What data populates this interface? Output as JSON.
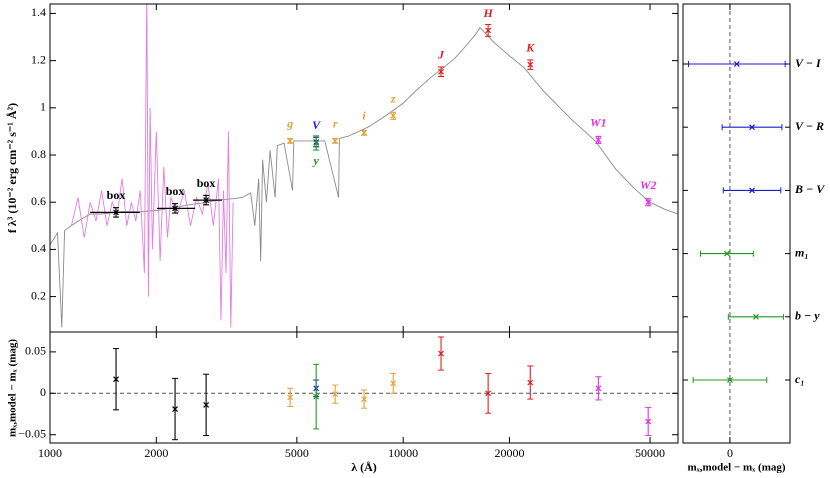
{
  "chart_data": [
    {
      "type": "sed",
      "ylabel": "f λ³ (10⁻² erg cm⁻² s⁻¹ Å²)",
      "xscale": "log",
      "xlim": [
        1000,
        60000
      ],
      "ylim": [
        0.05,
        1.44
      ],
      "yticks": [
        0.2,
        0.4,
        0.6,
        0.8,
        1,
        1.2,
        1.4
      ],
      "series": [
        {
          "color": "#8a8a8a",
          "x": [
            1000,
            1050,
            1080,
            1100,
            1200,
            1300,
            1400,
            1600,
            1800,
            2000,
            2200,
            2500,
            2800,
            3000,
            3300,
            3500,
            3700,
            3800,
            3900,
            3950,
            4000,
            4100,
            4200,
            4340,
            4400,
            4600,
            4861,
            4900,
            5200,
            5500,
            6000,
            6563,
            6600,
            7000,
            8000,
            9000,
            10000,
            11000,
            12000,
            13000,
            14000,
            15000,
            16000,
            16500,
            17000,
            18000,
            20000,
            22000,
            25000,
            30000,
            35000,
            40000,
            45000,
            50000,
            55000,
            60000
          ],
          "values": [
            0.42,
            0.47,
            0.07,
            0.48,
            0.52,
            0.55,
            0.55,
            0.56,
            0.56,
            0.565,
            0.575,
            0.59,
            0.6,
            0.61,
            0.615,
            0.62,
            0.64,
            0.5,
            0.7,
            0.35,
            0.78,
            0.6,
            0.82,
            0.62,
            0.84,
            0.85,
            0.65,
            0.86,
            0.86,
            0.86,
            0.86,
            0.62,
            0.87,
            0.88,
            0.92,
            0.97,
            1.02,
            1.08,
            1.13,
            1.17,
            1.21,
            1.26,
            1.31,
            1.34,
            1.32,
            1.28,
            1.22,
            1.17,
            1.07,
            0.95,
            0.86,
            0.74,
            0.66,
            0.6,
            0.57,
            0.55
          ]
        },
        {
          "color": "#e47de4",
          "x": [
            1150,
            1200,
            1250,
            1300,
            1350,
            1400,
            1450,
            1500,
            1550,
            1600,
            1650,
            1700,
            1750,
            1800,
            1850,
            1880,
            1900,
            1920,
            1950,
            2000,
            2050,
            2100,
            2150,
            2200,
            2300,
            2400,
            2500,
            2600,
            2700,
            2800,
            2900,
            3000,
            3050,
            3100,
            3150,
            3200,
            3250,
            3300
          ],
          "values": [
            0.5,
            0.62,
            0.45,
            0.6,
            0.52,
            0.65,
            0.5,
            0.6,
            0.55,
            0.7,
            0.5,
            0.6,
            0.52,
            0.65,
            0.3,
            1.5,
            0.2,
            1.0,
            0.4,
            0.9,
            0.35,
            0.75,
            0.45,
            0.62,
            0.55,
            0.65,
            0.5,
            0.62,
            0.55,
            0.68,
            0.5,
            0.7,
            0.1,
            0.65,
            0.3,
            0.9,
            0.07,
            0.6
          ]
        }
      ],
      "points": [
        {
          "label": "box",
          "color": "#000000",
          "x": 1538,
          "xrange": [
            1298,
            1798
          ],
          "value": 0.557,
          "error": 0.02
        },
        {
          "label": "box",
          "color": "#000000",
          "x": 2260,
          "xrange": [
            2010,
            2575
          ],
          "value": 0.574,
          "error": 0.02
        },
        {
          "label": "box",
          "color": "#000000",
          "x": 2767,
          "xrange": [
            2540,
            3070
          ],
          "value": 0.609,
          "error": 0.02
        },
        {
          "label": "g",
          "color": "#e3a23a",
          "x": 4786,
          "value": 0.86,
          "error": 0.01
        },
        {
          "label": "V",
          "color": "#1a1ad6",
          "x": 5670,
          "value": 0.855,
          "error": 0.02
        },
        {
          "label": "y",
          "color": "#1f9a1f",
          "x": 5670,
          "value": 0.851,
          "error": 0.03
        },
        {
          "label": "r",
          "color": "#e3a23a",
          "x": 6418,
          "value": 0.86,
          "error": 0.01
        },
        {
          "label": "i",
          "color": "#e3a23a",
          "x": 7750,
          "value": 0.894,
          "error": 0.01
        },
        {
          "label": "z",
          "color": "#e3a23a",
          "x": 9370,
          "value": 0.966,
          "error": 0.015
        },
        {
          "label": "J",
          "color": "#e02020",
          "x": 12800,
          "value": 1.153,
          "error": 0.02
        },
        {
          "label": "H",
          "color": "#e02020",
          "x": 17400,
          "value": 1.328,
          "error": 0.025
        },
        {
          "label": "K",
          "color": "#e02020",
          "x": 22900,
          "value": 1.183,
          "error": 0.02
        },
        {
          "label": "W1",
          "color": "#e62ee6",
          "x": 35700,
          "value": 0.864,
          "error": 0.015
        },
        {
          "label": "W2",
          "color": "#e62ee6",
          "x": 49400,
          "value": 0.6,
          "error": 0.015
        }
      ]
    },
    {
      "type": "residual",
      "xlabel": "λ (Å)",
      "ylabel": "mₓ,model − mₓ (mag)",
      "xscale": "log",
      "xlim": [
        1000,
        60000
      ],
      "xticks": [
        1000,
        2000,
        5000,
        10000,
        20000,
        50000
      ],
      "ylim": [
        -0.06,
        0.074
      ],
      "yticks": [
        0.05,
        0,
        {
          "value": -0.05,
          "label": "−0.05"
        }
      ],
      "x": [
        1538,
        2260,
        2767,
        4786,
        5670,
        5670,
        6418,
        7750,
        9370,
        12800,
        17400,
        22900,
        35700,
        49400
      ],
      "values": [
        0.017,
        -0.019,
        -0.014,
        -0.005,
        0.006,
        -0.004,
        -0.001,
        -0.007,
        0.012,
        0.048,
        0,
        0.013,
        0.006,
        -0.034
      ],
      "errors": [
        0.037,
        0.037,
        0.037,
        0.011,
        0.01,
        0.039,
        0.011,
        0.011,
        0.012,
        0.02,
        0.024,
        0.02,
        0.014,
        0.017
      ],
      "colors": [
        "#000000",
        "#000000",
        "#000000",
        "#e3a23a",
        "#1a1ad6",
        "#1f9a1f",
        "#e3a23a",
        "#e3a23a",
        "#e3a23a",
        "#e02020",
        "#e02020",
        "#e02020",
        "#e62ee6",
        "#e62ee6"
      ]
    },
    {
      "type": "color-residual",
      "xlabel": "mₓ,model − mₓ (mag)",
      "xlim": [
        -0.204,
        0.261
      ],
      "xticks": [
        0
      ],
      "categories": [
        "V − I",
        "V − R",
        "B − V",
        "m₁",
        "b − y",
        "c₁"
      ],
      "values": [
        0.03,
        0.096,
        0.096,
        -0.013,
        0.113,
        0
      ],
      "errors": [
        0.21,
        0.13,
        0.125,
        0.115,
        0.12,
        0.16
      ],
      "colors": [
        "#1a1ad6",
        "#1a1ad6",
        "#1a1ad6",
        "#1f9a1f",
        "#1f9a1f",
        "#1f9a1f"
      ]
    }
  ]
}
